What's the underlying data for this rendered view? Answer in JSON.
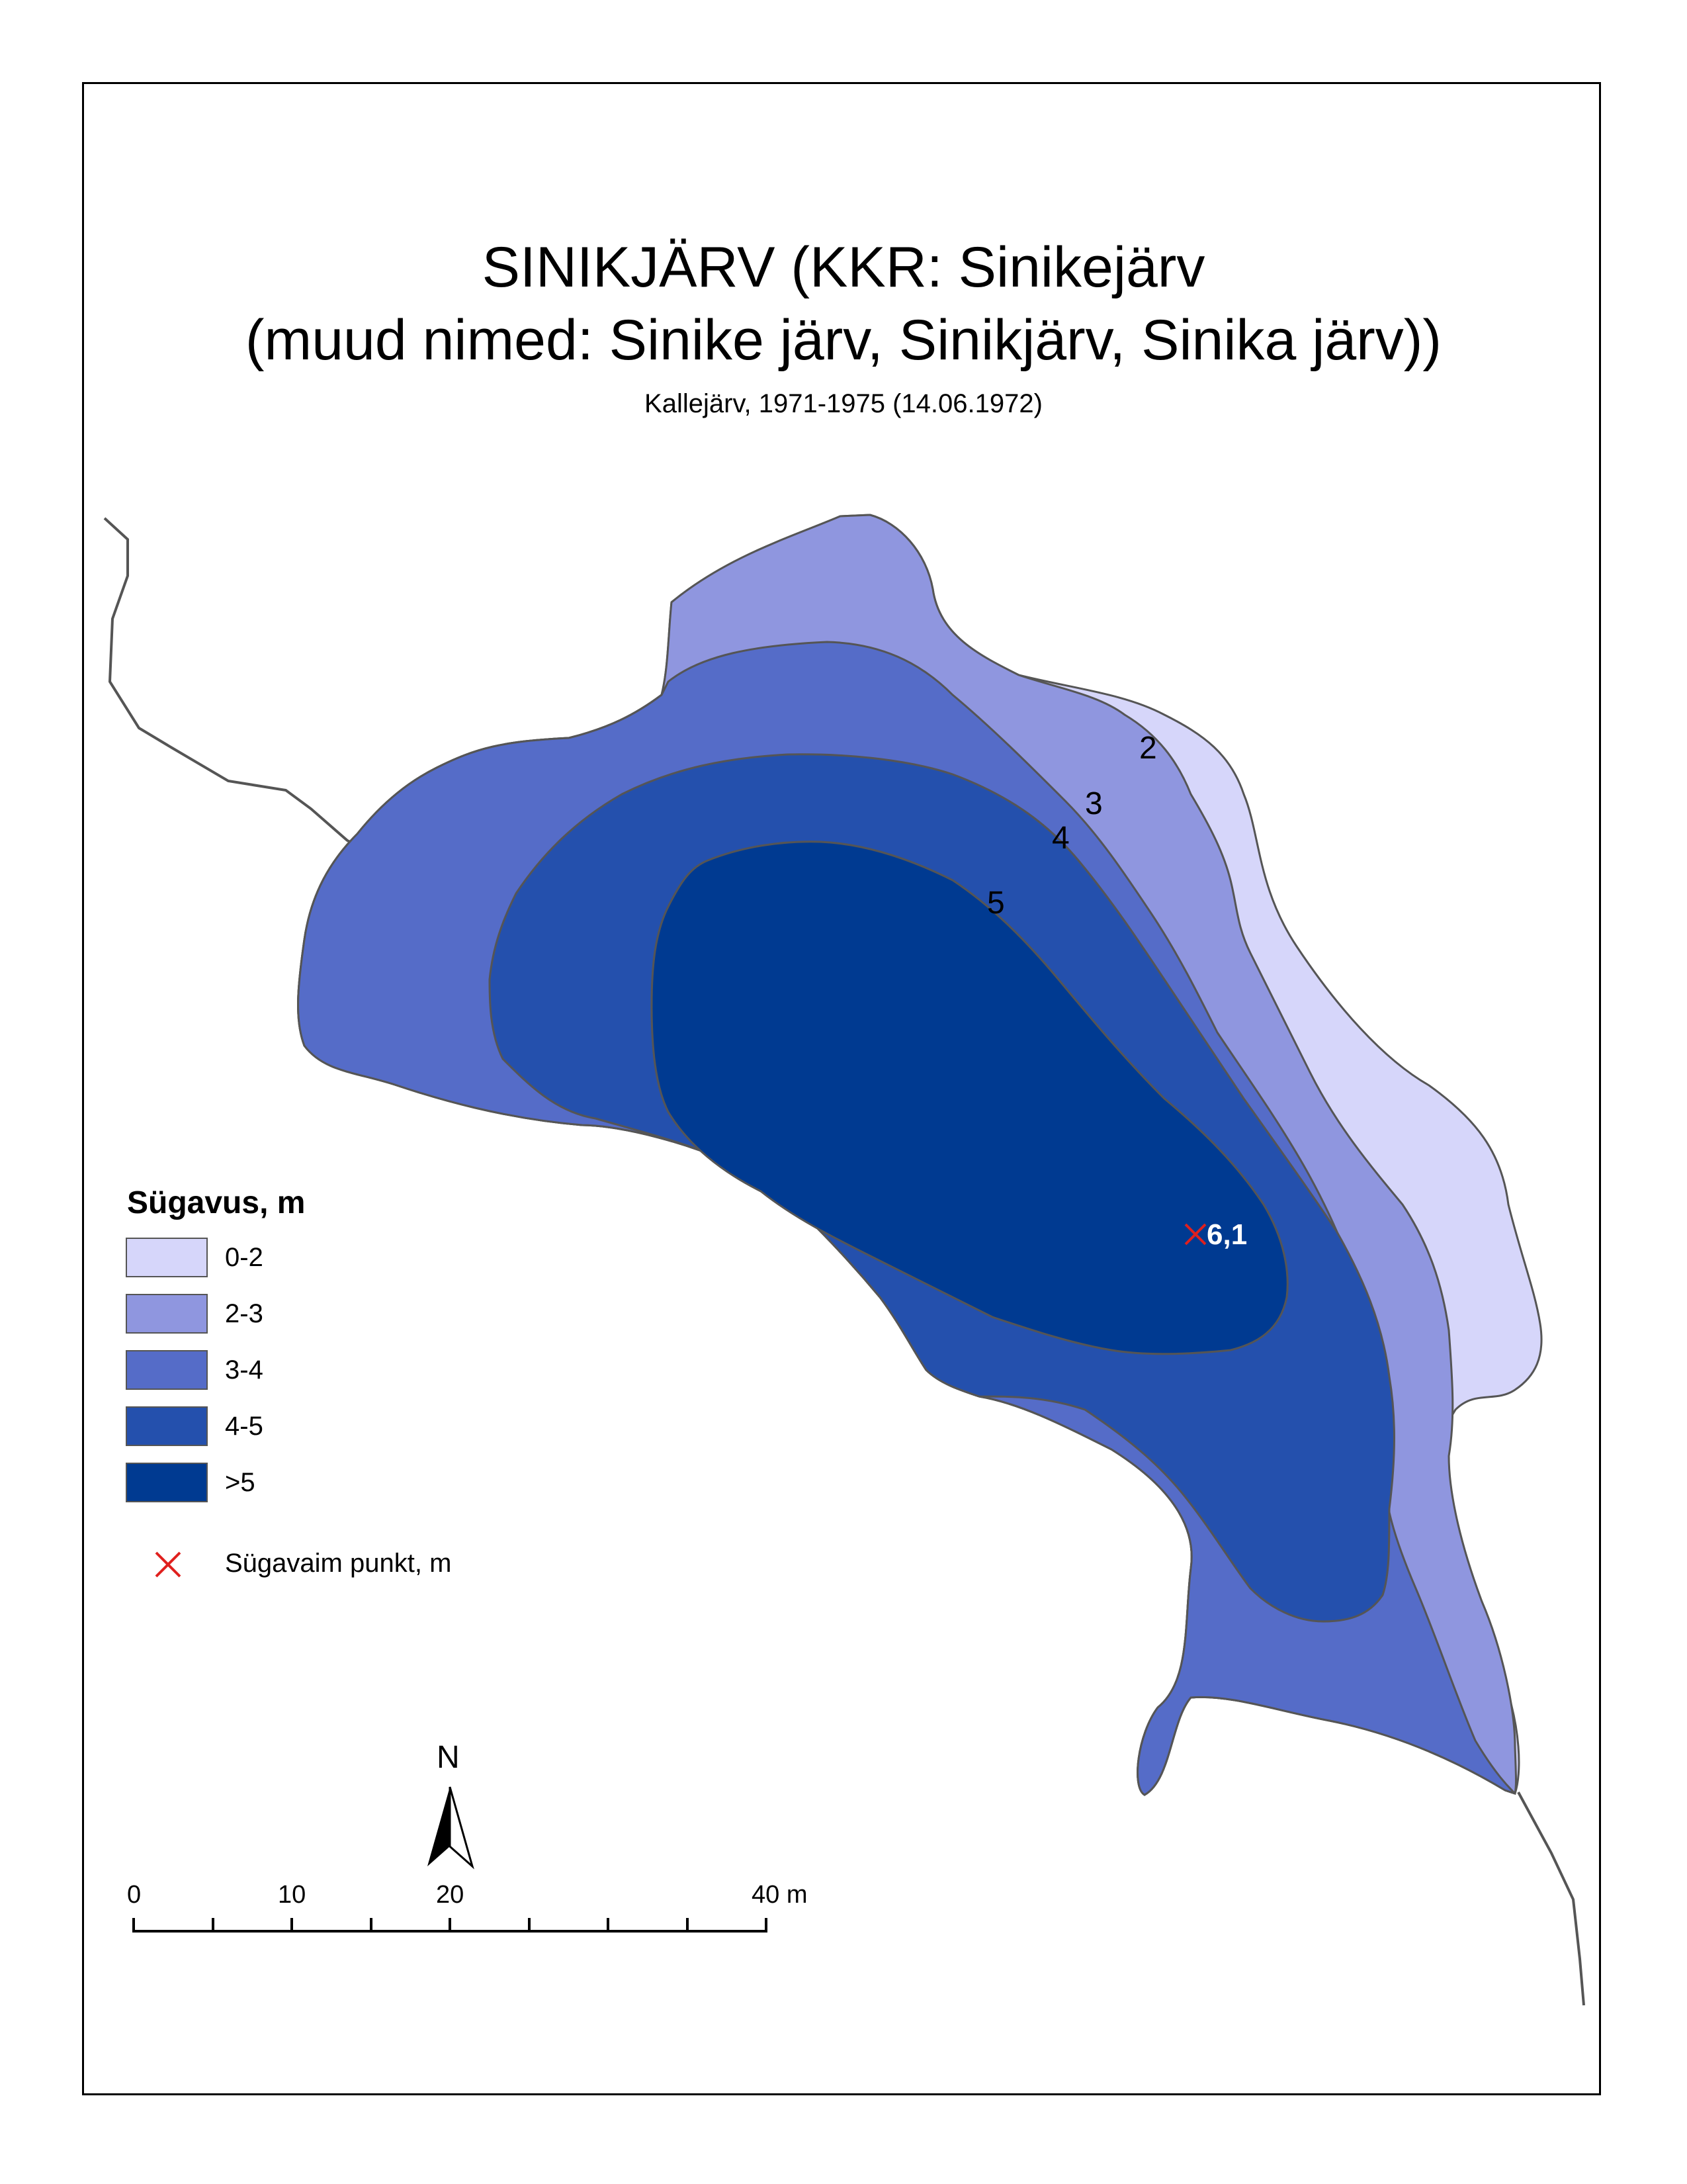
{
  "title": {
    "line1": "SINIKJÄRV (KKR: Sinikejärv",
    "line2": "(muud nimed: Sinike järv, Sinikjärv, Sinika järv))",
    "subtitle": "Kallejärv, 1971-1975 (14.06.1972)"
  },
  "colors": {
    "depth_0_2": "#d6d6fa",
    "depth_2_3": "#8f96df",
    "depth_3_4": "#556cc8",
    "depth_4_5": "#2450ad",
    "depth_gt5": "#003a91",
    "shoreline": "#555555",
    "stream": "#555555",
    "deepest_marker": "#e0201e"
  },
  "contours": {
    "label_2": "2",
    "label_3": "3",
    "label_4": "4",
    "label_5": "5"
  },
  "deepest_point": {
    "value": "6,1"
  },
  "legend": {
    "title": "Sügavus, m",
    "items": [
      {
        "label": "0-2"
      },
      {
        "label": "2-3"
      },
      {
        "label": "3-4"
      },
      {
        "label": "4-5"
      },
      {
        "label": ">5"
      }
    ],
    "marker_label": "Sügavaim punkt, m"
  },
  "north_arrow": {
    "label": "N"
  },
  "scale_bar": {
    "ticks": [
      "0",
      "10",
      "20",
      "40 m"
    ]
  }
}
